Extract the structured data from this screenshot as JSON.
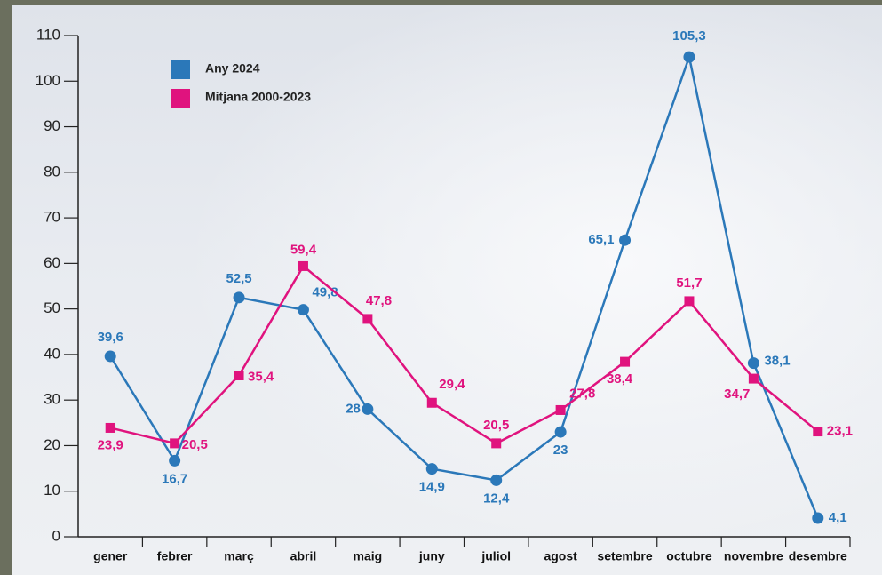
{
  "chart_data": {
    "type": "line",
    "categories": [
      "gener",
      "febrer",
      "març",
      "abril",
      "maig",
      "juny",
      "juliol",
      "agost",
      "setembre",
      "octubre",
      "novembre",
      "desembre"
    ],
    "series": [
      {
        "name": "Any 2024",
        "color": "#2b78b9",
        "marker": "circle",
        "values": [
          39.6,
          16.7,
          52.5,
          49.8,
          28,
          14.9,
          12.4,
          23,
          65.1,
          105.3,
          38.1,
          4.1
        ],
        "value_labels": [
          "39,6",
          "16,7",
          "52,5",
          "49,8",
          "28",
          "14,9",
          "12,4",
          "23",
          "65,1",
          "105,3",
          "38,1",
          "4,1"
        ]
      },
      {
        "name": "Mitjana 2000-2023",
        "color": "#e0137e",
        "marker": "square",
        "values": [
          23.9,
          20.5,
          35.4,
          59.4,
          47.8,
          29.4,
          20.5,
          27.8,
          38.4,
          51.7,
          34.7,
          23.1
        ],
        "value_labels": [
          "23,9",
          "20,5",
          "35,4",
          "59,4",
          "47,8",
          "29,4",
          "20,5",
          "27,8",
          "38,4",
          "51,7",
          "34,7",
          "23,1"
        ]
      }
    ],
    "ylim": [
      0,
      110
    ],
    "yticks": [
      0,
      10,
      20,
      30,
      40,
      50,
      60,
      70,
      80,
      90,
      100,
      110
    ],
    "grid": false,
    "legend": "upper left"
  }
}
